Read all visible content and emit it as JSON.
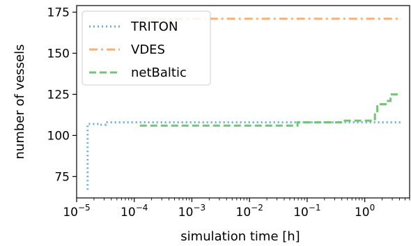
{
  "chart_data": {
    "type": "line",
    "xlabel": "simulation time [h]",
    "ylabel": "number of vessels",
    "xscale": "log",
    "xlim": [
      1e-05,
      6
    ],
    "ylim": [
      62,
      179
    ],
    "grid": false,
    "legend_position": "upper-left",
    "x_ticks": [
      {
        "value": 1e-05,
        "base": "10",
        "exp": "−5"
      },
      {
        "value": 0.0001,
        "base": "10",
        "exp": "−4"
      },
      {
        "value": 0.001,
        "base": "10",
        "exp": "−3"
      },
      {
        "value": 0.01,
        "base": "10",
        "exp": "−2"
      },
      {
        "value": 0.1,
        "base": "10",
        "exp": "−1"
      },
      {
        "value": 1,
        "base": "10",
        "exp": "0"
      }
    ],
    "y_ticks": [
      {
        "value": 75,
        "label": "75"
      },
      {
        "value": 100,
        "label": "100"
      },
      {
        "value": 125,
        "label": "125"
      },
      {
        "value": 150,
        "label": "150"
      },
      {
        "value": 175,
        "label": "175"
      }
    ],
    "series": [
      {
        "name": "TRITON",
        "color": "#6baed6",
        "style": "dotted",
        "points": [
          [
            1.55e-05,
            67
          ],
          [
            1.55e-05,
            107
          ],
          [
            2.5e-05,
            107
          ],
          [
            2.5e-05,
            106.5
          ],
          [
            3.2e-05,
            106.5
          ],
          [
            3.2e-05,
            108
          ],
          [
            4.3,
            108
          ]
        ]
      },
      {
        "name": "VDES",
        "color": "#fdae6b",
        "style": "dashdot",
        "points": [
          [
            0.000125,
            171
          ],
          [
            4.3,
            171
          ]
        ]
      },
      {
        "name": "netBaltic",
        "color": "#74c476",
        "style": "dashed",
        "points": [
          [
            0.000125,
            106
          ],
          [
            0.068,
            106
          ],
          [
            0.068,
            108
          ],
          [
            0.45,
            108
          ],
          [
            0.45,
            109
          ],
          [
            1.5,
            109
          ],
          [
            1.5,
            114
          ],
          [
            1.65,
            114
          ],
          [
            1.65,
            119
          ],
          [
            2.4,
            119
          ],
          [
            2.4,
            121
          ],
          [
            2.8,
            121
          ],
          [
            2.8,
            125
          ],
          [
            4.3,
            125
          ]
        ]
      }
    ]
  }
}
